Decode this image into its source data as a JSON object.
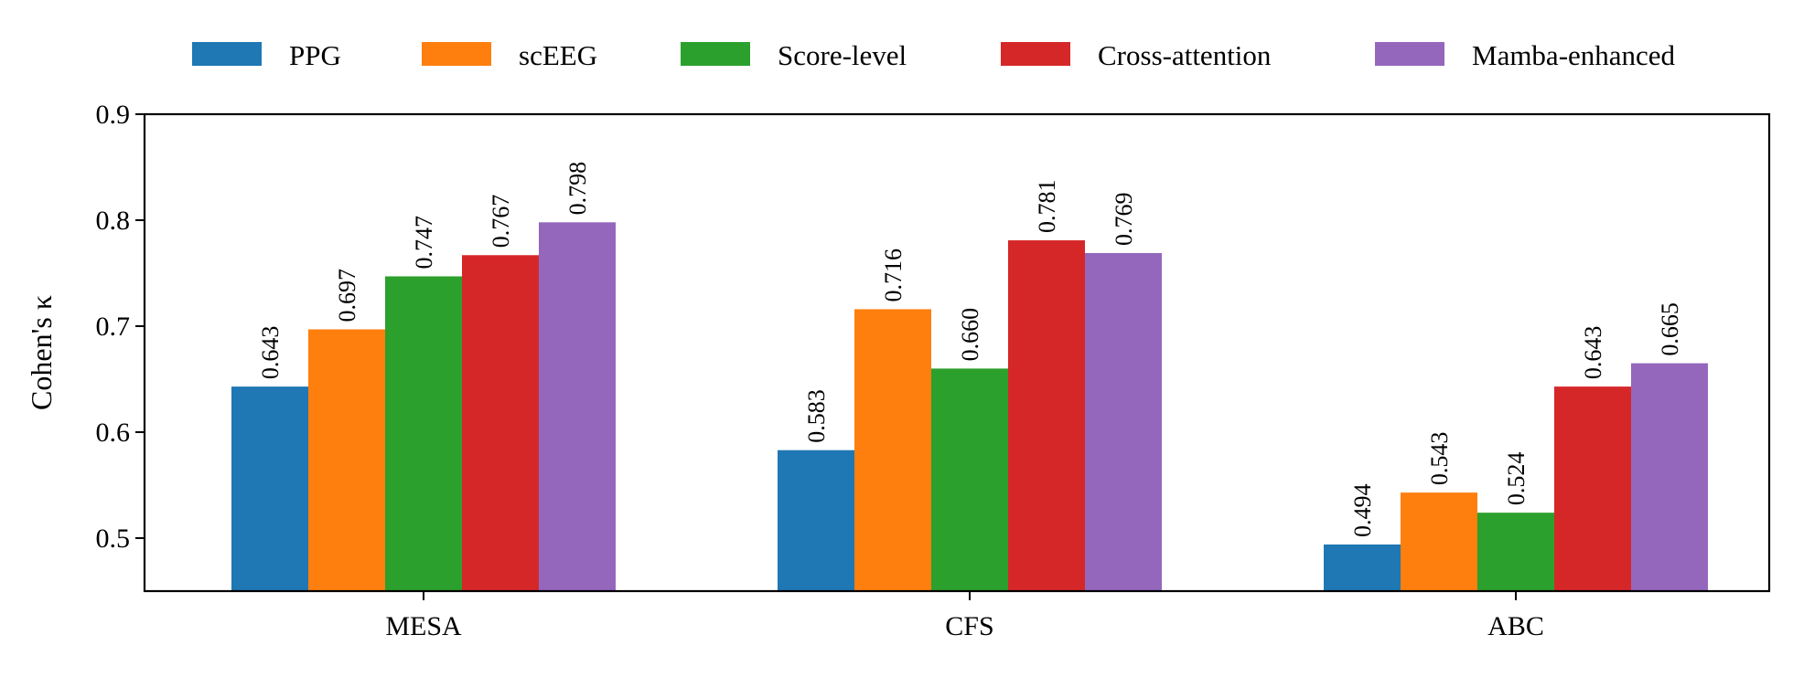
{
  "chart_data": {
    "type": "bar",
    "title": "",
    "xlabel": "",
    "ylabel": "Cohen's κ",
    "ylim": [
      0.45,
      0.9
    ],
    "yticks": [
      "0.5",
      "0.6",
      "0.7",
      "0.8",
      "0.9"
    ],
    "grid": false,
    "legend_position": "top",
    "categories": [
      "MESA",
      "CFS",
      "ABC"
    ],
    "series": [
      {
        "name": "PPG",
        "color": "#1f77b4",
        "values": [
          0.643,
          0.583,
          0.494
        ],
        "labels": [
          "0.643",
          "0.583",
          "0.494"
        ]
      },
      {
        "name": "scEEG",
        "color": "#ff7f0e",
        "values": [
          0.697,
          0.716,
          0.543
        ],
        "labels": [
          "0.697",
          "0.716",
          "0.543"
        ]
      },
      {
        "name": "Score-level",
        "color": "#2ca02c",
        "values": [
          0.747,
          0.66,
          0.524
        ],
        "labels": [
          "0.747",
          "0.660",
          "0.524"
        ]
      },
      {
        "name": "Cross-attention",
        "color": "#d62728",
        "values": [
          0.767,
          0.781,
          0.643
        ],
        "labels": [
          "0.767",
          "0.781",
          "0.643"
        ]
      },
      {
        "name": "Mamba-enhanced",
        "color": "#9467bd",
        "values": [
          0.798,
          0.769,
          0.665
        ],
        "labels": [
          "0.798",
          "0.769",
          "0.665"
        ]
      }
    ]
  }
}
